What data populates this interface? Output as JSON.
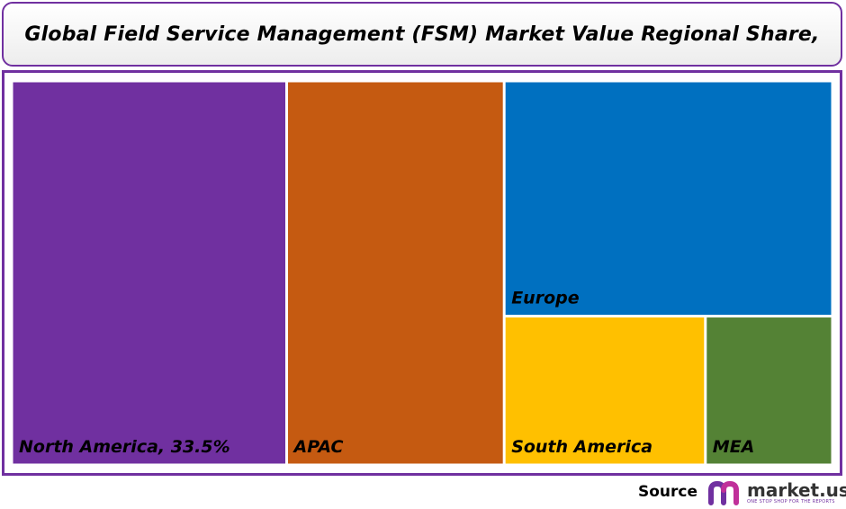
{
  "title": "Global Field Service Management (FSM) Market Value Regional Share,",
  "chart_data": {
    "type": "treemap",
    "title": "Global Field Service Management (FSM) Market Value Regional Share,",
    "items": [
      {
        "label": "North America, 33.5%",
        "name": "North America",
        "value": 33.5,
        "color": "#7030a0"
      },
      {
        "label": "APAC",
        "name": "APAC",
        "value": 26.5,
        "color": "#c55a11"
      },
      {
        "label": "Europe",
        "name": "Europe",
        "value": 24.5,
        "color": "#0070c0"
      },
      {
        "label": "South America",
        "name": "South America",
        "value": 9.5,
        "color": "#ffc000"
      },
      {
        "label": "MEA",
        "name": "MEA",
        "value": 6.0,
        "color": "#548235"
      }
    ]
  },
  "footer": {
    "source_label": "Source",
    "logo_text": "market.us",
    "logo_tagline": "ONE STOP SHOP FOR THE REPORTS"
  }
}
